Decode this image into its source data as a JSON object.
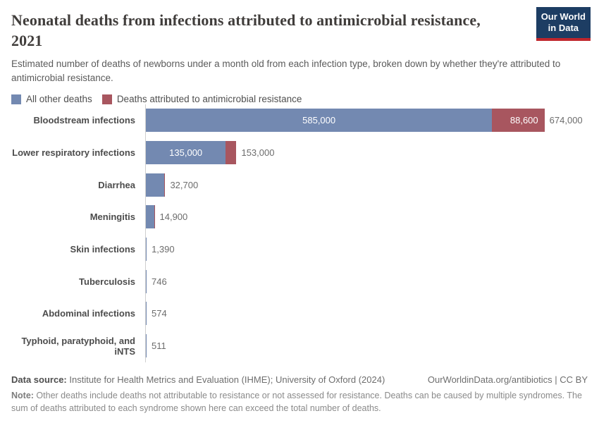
{
  "header": {
    "title_line1": "Neonatal deaths from infections attributed to antimicrobial resistance,",
    "title_line2": "2021",
    "subtitle": "Estimated number of deaths of newborns under a month old from each infection type, broken down by whether they're attributed to antimicrobial resistance.",
    "logo_line1": "Our World",
    "logo_line2": "in Data"
  },
  "legend": [
    {
      "label": "All other deaths",
      "color": "#7389b1"
    },
    {
      "label": "Deaths attributed to antimicrobial resistance",
      "color": "#a8565f"
    }
  ],
  "chart_data": {
    "type": "bar",
    "orientation": "horizontal",
    "title": "Neonatal deaths from infections attributed to antimicrobial resistance, 2021",
    "xlim": [
      0,
      674000
    ],
    "grid": false,
    "legend_position": "top",
    "series_names": [
      "All other deaths",
      "Deaths attributed to antimicrobial resistance"
    ],
    "rows": [
      {
        "category": "Bloodstream infections",
        "all_other": 585000,
        "amr": 88600,
        "total": 674000,
        "all_other_label": "585,000",
        "amr_label": "88,600",
        "total_label": "674,000"
      },
      {
        "category": "Lower respiratory infections",
        "all_other": 135000,
        "amr": 18000,
        "total": 153000,
        "all_other_label": "135,000",
        "amr_label": "",
        "total_label": "153,000"
      },
      {
        "category": "Diarrhea",
        "all_other": 30500,
        "amr": 2200,
        "total": 32700,
        "all_other_label": "",
        "amr_label": "",
        "total_label": "32,700"
      },
      {
        "category": "Meningitis",
        "all_other": 13700,
        "amr": 1200,
        "total": 14900,
        "all_other_label": "",
        "amr_label": "",
        "total_label": "14,900"
      },
      {
        "category": "Skin infections",
        "all_other": 1300,
        "amr": 90,
        "total": 1390,
        "all_other_label": "",
        "amr_label": "",
        "total_label": "1,390"
      },
      {
        "category": "Tuberculosis",
        "all_other": 700,
        "amr": 46,
        "total": 746,
        "all_other_label": "",
        "amr_label": "",
        "total_label": "746"
      },
      {
        "category": "Abdominal infections",
        "all_other": 540,
        "amr": 34,
        "total": 574,
        "all_other_label": "",
        "amr_label": "",
        "total_label": "574"
      },
      {
        "category": "Typhoid, paratyphoid, and iNTS",
        "all_other": 480,
        "amr": 31,
        "total": 511,
        "all_other_label": "",
        "amr_label": "",
        "total_label": "511"
      }
    ]
  },
  "footer": {
    "source_label": "Data source:",
    "source_text": " Institute for Health Metrics and Evaluation (IHME); University of Oxford (2024)",
    "link_text": "OurWorldinData.org/antibiotics | CC BY",
    "note_label": "Note:",
    "note_text": " Other deaths include deaths not attributable to resistance or not assessed for resistance. Deaths can be caused by multiple syndromes. The sum of deaths attributed to each syndrome shown here can exceed the total number of deaths."
  },
  "colors": {
    "all_other": "#7389b1",
    "amr": "#a8565f",
    "logo_bg": "#1d3d63",
    "logo_stripe": "#c0262c",
    "axis": "#cfcfcf",
    "title_text": "#403d3b"
  }
}
